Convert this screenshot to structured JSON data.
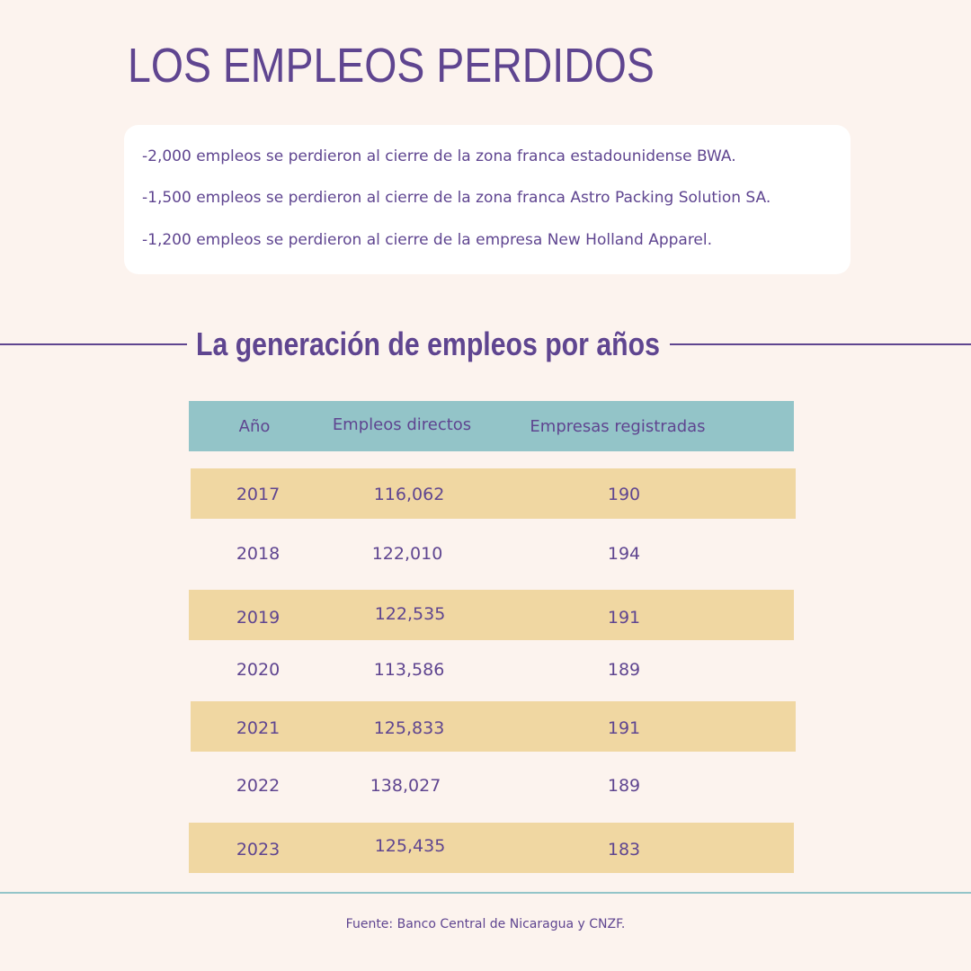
{
  "title": "LOS EMPLEOS PERDIDOS",
  "losses": [
    "-2,000 empleos se perdieron al cierre de la zona franca estadounidense BWA.",
    "-1,500 empleos se perdieron al cierre de la zona franca Astro Packing Solution SA.",
    "-1,200 empleos se perdieron al cierre de la empresa New Holland Apparel."
  ],
  "colors": {
    "purple": "#5f4590",
    "header": "#93c4c8",
    "band": "#f0d7a2",
    "background": "#fcf3ee"
  },
  "chart_data": {
    "type": "table",
    "title": "La generación de empleos por años",
    "columns": [
      "Año",
      "Empleos directos",
      "Empresas registradas"
    ],
    "rows": [
      [
        "2017",
        "116,062",
        "190"
      ],
      [
        "2018",
        "122,010",
        "194"
      ],
      [
        "2019",
        "122,535",
        "191"
      ],
      [
        "2020",
        "113,586",
        "189"
      ],
      [
        "2021",
        "125,833",
        "191"
      ],
      [
        "2022",
        "138,027",
        "189"
      ],
      [
        "2023",
        "125,435",
        "183"
      ]
    ]
  },
  "source": "Fuente: Banco Central de Nicaragua y CNZF."
}
